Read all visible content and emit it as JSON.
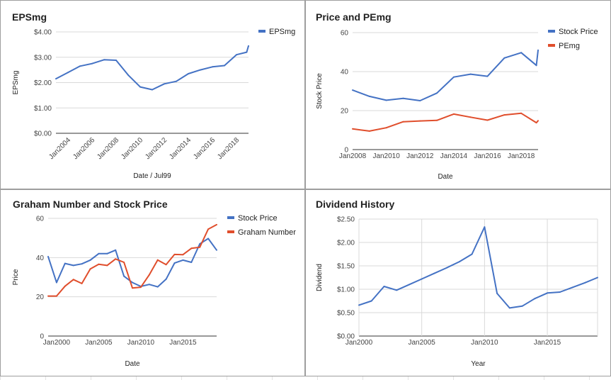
{
  "chart_data": [
    {
      "id": "eps",
      "type": "line",
      "title": "EPSmg",
      "xlabel": "Date / Jul99",
      "ylabel": "EPSmg",
      "x_type": "time",
      "xlim": [
        2003.0,
        2019.0
      ],
      "ylim": [
        0,
        4
      ],
      "yticks": [
        0,
        1,
        2,
        3,
        4
      ],
      "ytick_labels": [
        "$0.00",
        "$1.00",
        "$2.00",
        "$3.00",
        "$4.00"
      ],
      "xticks": [
        2004,
        2006,
        2008,
        2010,
        2012,
        2014,
        2016,
        2018
      ],
      "xtick_labels": [
        "Jan2004",
        "Jan2006",
        "Jan2008",
        "Jan2010",
        "Jan2012",
        "Jan2014",
        "Jan2016",
        "Jan2018"
      ],
      "x_rotated": true,
      "grid": true,
      "legend": "right",
      "series": [
        {
          "name": "EPSmg",
          "color": "#4472c4",
          "x": [
            2003.0,
            2004.0,
            2005.0,
            2006.0,
            2007.0,
            2008.0,
            2009.0,
            2010.0,
            2011.0,
            2012.0,
            2013.0,
            2014.0,
            2015.0,
            2016.0,
            2017.0,
            2018.0,
            2018.85,
            2019.0
          ],
          "y": [
            2.15,
            2.4,
            2.65,
            2.75,
            2.9,
            2.88,
            2.3,
            1.83,
            1.72,
            1.95,
            2.05,
            2.35,
            2.5,
            2.62,
            2.67,
            3.1,
            3.2,
            3.45
          ]
        }
      ]
    },
    {
      "id": "price_pe",
      "type": "line",
      "title": "Price and PEmg",
      "xlabel": "Date",
      "ylabel": "Stock Price",
      "x_type": "time",
      "xlim": [
        2008.0,
        2019.0
      ],
      "ylim": [
        0,
        60
      ],
      "yticks": [
        0,
        20,
        40,
        60
      ],
      "ytick_labels": [
        "0",
        "20",
        "40",
        "60"
      ],
      "xticks": [
        2008,
        2010,
        2012,
        2014,
        2016,
        2018
      ],
      "xtick_labels": [
        "Jan2008",
        "Jan2010",
        "Jan2012",
        "Jan2014",
        "Jan2016",
        "Jan2018"
      ],
      "x_rotated": false,
      "grid": true,
      "legend": "right",
      "series": [
        {
          "name": "Stock Price",
          "color": "#4472c4",
          "x": [
            2008.0,
            2009.0,
            2010.0,
            2011.0,
            2012.0,
            2013.0,
            2014.0,
            2015.0,
            2016.0,
            2017.0,
            2018.0,
            2018.9,
            2019.0
          ],
          "y": [
            30.5,
            27.3,
            25.3,
            26.3,
            25.1,
            29.0,
            37.2,
            38.7,
            37.6,
            47.0,
            49.7,
            43.2,
            51.0
          ]
        },
        {
          "name": "PEmg",
          "color": "#e04e2c",
          "x": [
            2008.0,
            2009.0,
            2010.0,
            2011.0,
            2012.0,
            2013.0,
            2014.0,
            2015.0,
            2016.0,
            2017.0,
            2018.0,
            2018.9,
            2019.0
          ],
          "y": [
            10.6,
            9.5,
            11.2,
            14.3,
            14.7,
            15.0,
            18.2,
            16.6,
            15.1,
            17.8,
            18.6,
            13.8,
            14.8
          ]
        }
      ]
    },
    {
      "id": "graham",
      "type": "line",
      "title": "Graham Number and Stock Price",
      "xlabel": "Date",
      "ylabel": "Price",
      "x_type": "time",
      "xlim": [
        1999.0,
        2019.0
      ],
      "ylim": [
        0,
        60
      ],
      "yticks": [
        0,
        20,
        40,
        60
      ],
      "ytick_labels": [
        "0",
        "20",
        "40",
        "60"
      ],
      "xticks": [
        2000,
        2005,
        2010,
        2015
      ],
      "xtick_labels": [
        "Jan2000",
        "Jan2005",
        "Jan2010",
        "Jan2015"
      ],
      "x_rotated": false,
      "grid": true,
      "legend": "right",
      "series": [
        {
          "name": "Stock Price",
          "color": "#4472c4",
          "x": [
            1999.0,
            2000.0,
            2001.0,
            2002.0,
            2003.0,
            2004.0,
            2005.0,
            2006.0,
            2007.0,
            2008.0,
            2009.0,
            2010.0,
            2011.0,
            2012.0,
            2013.0,
            2014.0,
            2015.0,
            2016.0,
            2017.0,
            2018.0,
            2019.0
          ],
          "y": [
            40.5,
            27.3,
            37.0,
            36.0,
            36.8,
            38.7,
            42.0,
            42.0,
            43.8,
            30.5,
            27.3,
            25.3,
            26.3,
            25.1,
            29.0,
            37.2,
            38.7,
            37.6,
            47.0,
            49.7,
            43.8
          ]
        },
        {
          "name": "Graham Number",
          "color": "#e04e2c",
          "x": [
            1999.0,
            2000.0,
            2001.0,
            2002.0,
            2003.0,
            2004.0,
            2005.0,
            2006.0,
            2007.0,
            2008.0,
            2009.0,
            2010.0,
            2011.0,
            2012.0,
            2013.0,
            2014.0,
            2015.0,
            2016.0,
            2017.0,
            2018.0,
            2019.0
          ],
          "y": [
            20.4,
            20.4,
            25.4,
            28.8,
            26.8,
            34.2,
            36.6,
            36.0,
            39.3,
            37.6,
            24.5,
            24.9,
            31.2,
            38.8,
            36.4,
            41.6,
            41.5,
            44.7,
            45.3,
            54.5,
            56.8
          ]
        }
      ]
    },
    {
      "id": "dividend",
      "type": "line",
      "title": "Dividend History",
      "xlabel": "Year",
      "ylabel": "Dividend",
      "x_type": "time",
      "xlim": [
        2000.0,
        2019.0
      ],
      "ylim": [
        0,
        2.5
      ],
      "yticks": [
        0,
        0.5,
        1.0,
        1.5,
        2.0,
        2.5
      ],
      "ytick_labels": [
        "$0.00",
        "$0.50",
        "$1.00",
        "$1.50",
        "$2.00",
        "$2.50"
      ],
      "xticks": [
        2000,
        2005,
        2010,
        2015
      ],
      "xtick_labels": [
        "Jan2000",
        "Jan2005",
        "Jan2010",
        "Jan2015"
      ],
      "x_rotated": false,
      "grid": true,
      "grid_vertical": true,
      "legend": "none",
      "series": [
        {
          "name": "",
          "color": "#4472c4",
          "x": [
            2000.0,
            2001.0,
            2002.0,
            2003.0,
            2004.0,
            2005.0,
            2006.0,
            2007.0,
            2008.0,
            2009.0,
            2010.0,
            2011.0,
            2012.0,
            2013.0,
            2014.0,
            2015.0,
            2016.0,
            2017.0,
            2018.0,
            2019.0
          ],
          "y": [
            0.66,
            0.75,
            1.06,
            0.98,
            1.1,
            1.22,
            1.34,
            1.46,
            1.59,
            1.75,
            2.33,
            0.91,
            0.6,
            0.64,
            0.8,
            0.92,
            0.94,
            1.04,
            1.14,
            1.25
          ]
        }
      ]
    }
  ]
}
